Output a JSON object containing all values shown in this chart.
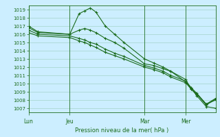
{
  "title": "Pression niveau de la mer( hPa )",
  "bg_color": "#cceeff",
  "grid_color": "#99ccbb",
  "line_color": "#1a6b1a",
  "ylim": [
    1006.5,
    1019.5
  ],
  "yticks": [
    1007,
    1008,
    1009,
    1010,
    1011,
    1012,
    1013,
    1014,
    1015,
    1016,
    1017,
    1018,
    1019
  ],
  "day_labels": [
    "Lun",
    "Jeu",
    "Mar",
    "Mer"
  ],
  "day_positions": [
    0.0,
    0.22,
    0.62,
    0.84
  ],
  "lines": [
    {
      "x": [
        0.0,
        0.05,
        0.22,
        0.27,
        0.3,
        0.33,
        0.36,
        0.41,
        0.46,
        0.51,
        0.62,
        0.67,
        0.72,
        0.76,
        0.84,
        0.87,
        0.9,
        0.95,
        1.0
      ],
      "y": [
        1017.0,
        1016.3,
        1016.0,
        1018.5,
        1018.85,
        1019.2,
        1018.7,
        1017.0,
        1016.0,
        1015.0,
        1013.0,
        1012.5,
        1012.0,
        1011.5,
        1010.2,
        1009.4,
        1008.5,
        1007.2,
        1007.0
      ]
    },
    {
      "x": [
        0.0,
        0.05,
        0.22,
        0.27,
        0.3,
        0.33,
        0.36,
        0.41,
        0.46,
        0.51,
        0.62,
        0.67,
        0.72,
        0.76,
        0.84,
        0.87,
        0.9,
        0.95,
        1.0
      ],
      "y": [
        1016.8,
        1016.2,
        1016.0,
        1016.5,
        1016.7,
        1016.5,
        1016.2,
        1015.5,
        1015.0,
        1014.3,
        1012.4,
        1012.2,
        1011.8,
        1011.5,
        1010.5,
        1009.3,
        1008.7,
        1007.4,
        1008.1
      ]
    },
    {
      "x": [
        0.0,
        0.05,
        0.22,
        0.27,
        0.3,
        0.33,
        0.36,
        0.41,
        0.46,
        0.51,
        0.62,
        0.67,
        0.72,
        0.76,
        0.84,
        0.87,
        0.9,
        0.95,
        1.0
      ],
      "y": [
        1016.5,
        1016.0,
        1015.8,
        1015.5,
        1015.3,
        1015.0,
        1014.8,
        1014.2,
        1013.7,
        1013.3,
        1012.2,
        1011.9,
        1011.5,
        1011.0,
        1010.3,
        1009.5,
        1008.8,
        1007.5,
        1008.0
      ]
    },
    {
      "x": [
        0.0,
        0.05,
        0.22,
        0.27,
        0.3,
        0.33,
        0.36,
        0.41,
        0.46,
        0.51,
        0.62,
        0.67,
        0.72,
        0.76,
        0.84,
        0.87,
        0.9,
        0.95,
        1.0
      ],
      "y": [
        1016.2,
        1015.8,
        1015.6,
        1015.2,
        1015.0,
        1014.7,
        1014.4,
        1013.8,
        1013.4,
        1013.0,
        1012.0,
        1011.7,
        1011.3,
        1010.8,
        1010.1,
        1009.3,
        1008.7,
        1007.5,
        1008.2
      ]
    }
  ]
}
